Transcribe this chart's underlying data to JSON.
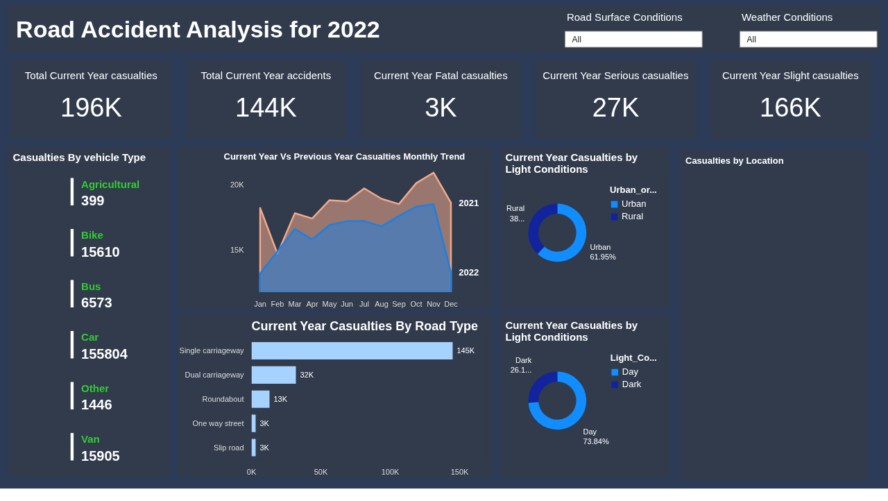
{
  "chart_data": [
    {
      "type": "other",
      "title": "Road Accident Analysis for 2022",
      "annotations": [
        "Road Surface Conditions",
        "All",
        "Weather Conditions",
        "All"
      ]
    },
    {
      "type": "other",
      "categories": [
        "Total Current Year casualties",
        "Total Current Year accidents",
        "Current Year Fatal casualties",
        "Current Year Serious casualties",
        "Current Year Slight casualties"
      ],
      "value_labels": [
        "196K",
        "144K",
        "3K",
        "27K",
        "166K"
      ]
    },
    {
      "type": "other",
      "title": "Casualties By vehicle Type",
      "categories": [
        "Agricultural",
        "Bike",
        "Bus",
        "Car",
        "Other",
        "Van"
      ],
      "values": [
        399,
        15610,
        6573,
        155804,
        1446,
        15905
      ],
      "data_labels": true
    },
    {
      "type": "area",
      "title": "Current Year Vs Previous Year Casualties Monthly Trend",
      "categories": [
        "Jan",
        "Feb",
        "Mar",
        "Apr",
        "May",
        "Jun",
        "Jul",
        "Aug",
        "Sep",
        "Oct",
        "Nov",
        "Dec"
      ],
      "ylim": [
        11800,
        21500
      ],
      "yticks": [
        {
          "value": 15000,
          "label": "15K"
        },
        {
          "value": 20000,
          "label": "20K"
        }
      ],
      "series": [
        {
          "name": "2021",
          "color": "#f0a98a",
          "values": [
            18200,
            14700,
            17800,
            17400,
            18800,
            18700,
            19700,
            18900,
            18500,
            20100,
            20900,
            18600
          ]
        },
        {
          "name": "2022",
          "color": "#1f7fe0",
          "values": [
            13200,
            14900,
            16600,
            15800,
            16900,
            17200,
            17200,
            16800,
            17600,
            18300,
            18500,
            13300
          ]
        }
      ]
    },
    {
      "type": "donut",
      "title": "Current Year Casualties by Light Conditions",
      "legend_title": "Urban_or...",
      "legend": "right",
      "categories": [
        "Urban",
        "Rural"
      ],
      "values": [
        61.95,
        38.05
      ],
      "value_labels": [
        "61.95%",
        "38..."
      ],
      "colors": [
        "#118dff",
        "#12239e"
      ]
    },
    {
      "type": "other",
      "title": "Casualties by Location"
    },
    {
      "type": "bar",
      "orientation": "horizontal",
      "title": "Current Year Casualties By Road Type",
      "categories": [
        "Single carriageway",
        "Dual carriageway",
        "Roundabout",
        "One way street",
        "Slip road"
      ],
      "values": [
        145000,
        32000,
        13000,
        3000,
        3000
      ],
      "value_labels": [
        "145K",
        "32K",
        "13K",
        "3K",
        "3K"
      ],
      "color": "#a6d2ff",
      "xlim": [
        0,
        170000
      ],
      "xticks": [
        {
          "value": 0,
          "label": "0K"
        },
        {
          "value": 50000,
          "label": "50K"
        },
        {
          "value": 100000,
          "label": "100K"
        },
        {
          "value": 150000,
          "label": "150K"
        }
      ]
    },
    {
      "type": "donut",
      "title": "Current Year Casualties by Light Conditions",
      "legend_title": "Light_Co...",
      "legend": "right",
      "categories": [
        "Day",
        "Dark"
      ],
      "values": [
        73.84,
        26.16
      ],
      "value_labels": [
        "73.84%",
        "26.1..."
      ],
      "colors": [
        "#118dff",
        "#12239e"
      ]
    }
  ]
}
